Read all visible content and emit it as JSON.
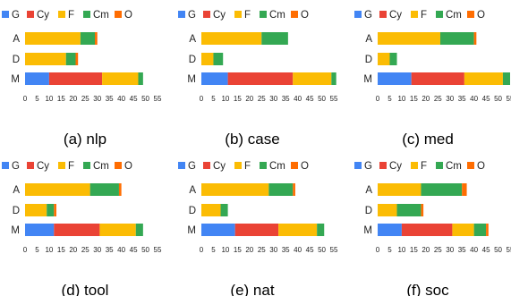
{
  "legend": [
    {
      "key": "G",
      "label": "G",
      "color": "#4285F4"
    },
    {
      "key": "Cy",
      "label": "Cy",
      "color": "#EA4335"
    },
    {
      "key": "F",
      "label": "F",
      "color": "#FBBC04"
    },
    {
      "key": "Cm",
      "label": "Cm",
      "color": "#34A853"
    },
    {
      "key": "O",
      "label": "O",
      "color": "#FF6D01"
    }
  ],
  "chart_data": [
    {
      "type": "bar",
      "orientation": "horizontal",
      "stacked": true,
      "caption": "(a) nlp",
      "categories": [
        "A",
        "D",
        "M"
      ],
      "xlim": [
        0,
        55
      ],
      "xticks": [
        0,
        5,
        10,
        15,
        20,
        25,
        30,
        35,
        40,
        45,
        50,
        55
      ],
      "series": [
        {
          "name": "G",
          "values": [
            0,
            0,
            10
          ]
        },
        {
          "name": "Cy",
          "values": [
            0,
            0,
            22
          ]
        },
        {
          "name": "F",
          "values": [
            23,
            17,
            15
          ]
        },
        {
          "name": "Cm",
          "values": [
            6,
            4,
            2
          ]
        },
        {
          "name": "O",
          "values": [
            1,
            1,
            0
          ]
        }
      ]
    },
    {
      "type": "bar",
      "orientation": "horizontal",
      "stacked": true,
      "caption": "(b) case",
      "categories": [
        "A",
        "D",
        "M"
      ],
      "xlim": [
        0,
        55
      ],
      "xticks": [
        0,
        5,
        10,
        15,
        20,
        25,
        30,
        35,
        40,
        45,
        50,
        55
      ],
      "series": [
        {
          "name": "G",
          "values": [
            0,
            0,
            11
          ]
        },
        {
          "name": "Cy",
          "values": [
            0,
            0,
            27
          ]
        },
        {
          "name": "F",
          "values": [
            25,
            5,
            16
          ]
        },
        {
          "name": "Cm",
          "values": [
            11,
            4,
            2
          ]
        },
        {
          "name": "O",
          "values": [
            0,
            0,
            0
          ]
        }
      ]
    },
    {
      "type": "bar",
      "orientation": "horizontal",
      "stacked": true,
      "caption": "(c) med",
      "categories": [
        "A",
        "D",
        "M"
      ],
      "xlim": [
        0,
        55
      ],
      "xticks": [
        0,
        5,
        10,
        15,
        20,
        25,
        30,
        35,
        40,
        45,
        50,
        55
      ],
      "series": [
        {
          "name": "G",
          "values": [
            0,
            0,
            14
          ]
        },
        {
          "name": "Cy",
          "values": [
            0,
            0,
            22
          ]
        },
        {
          "name": "F",
          "values": [
            26,
            5,
            16
          ]
        },
        {
          "name": "Cm",
          "values": [
            14,
            3,
            3
          ]
        },
        {
          "name": "O",
          "values": [
            1,
            0,
            0
          ]
        }
      ]
    },
    {
      "type": "bar",
      "orientation": "horizontal",
      "stacked": true,
      "caption": "(d) tool",
      "categories": [
        "A",
        "D",
        "M"
      ],
      "xlim": [
        0,
        55
      ],
      "xticks": [
        0,
        5,
        10,
        15,
        20,
        25,
        30,
        35,
        40,
        45,
        50,
        55
      ],
      "series": [
        {
          "name": "G",
          "values": [
            0,
            0,
            12
          ]
        },
        {
          "name": "Cy",
          "values": [
            0,
            0,
            19
          ]
        },
        {
          "name": "F",
          "values": [
            27,
            9,
            15
          ]
        },
        {
          "name": "Cm",
          "values": [
            12,
            3,
            3
          ]
        },
        {
          "name": "O",
          "values": [
            1,
            1,
            0
          ]
        }
      ]
    },
    {
      "type": "bar",
      "orientation": "horizontal",
      "stacked": true,
      "caption": "(e) nat",
      "categories": [
        "A",
        "D",
        "M"
      ],
      "xlim": [
        0,
        55
      ],
      "xticks": [
        0,
        5,
        10,
        15,
        20,
        25,
        30,
        35,
        40,
        45,
        50,
        55
      ],
      "series": [
        {
          "name": "G",
          "values": [
            0,
            0,
            14
          ]
        },
        {
          "name": "Cy",
          "values": [
            0,
            0,
            18
          ]
        },
        {
          "name": "F",
          "values": [
            28,
            8,
            16
          ]
        },
        {
          "name": "Cm",
          "values": [
            10,
            3,
            3
          ]
        },
        {
          "name": "O",
          "values": [
            1,
            0,
            0
          ]
        }
      ]
    },
    {
      "type": "bar",
      "orientation": "horizontal",
      "stacked": true,
      "caption": "(f) soc",
      "categories": [
        "A",
        "D",
        "M"
      ],
      "xlim": [
        0,
        55
      ],
      "xticks": [
        0,
        5,
        10,
        15,
        20,
        25,
        30,
        35,
        40,
        45,
        50,
        55
      ],
      "series": [
        {
          "name": "G",
          "values": [
            0,
            0,
            10
          ]
        },
        {
          "name": "Cy",
          "values": [
            0,
            0,
            21
          ]
        },
        {
          "name": "F",
          "values": [
            18,
            8,
            9
          ]
        },
        {
          "name": "Cm",
          "values": [
            17,
            10,
            5
          ]
        },
        {
          "name": "O",
          "values": [
            2,
            1,
            1
          ]
        }
      ]
    }
  ]
}
